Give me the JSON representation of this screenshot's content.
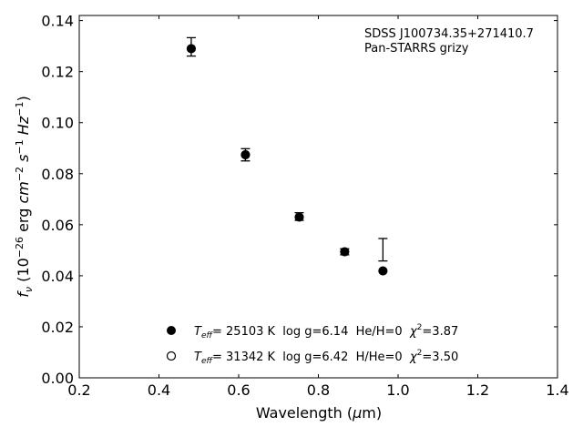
{
  "chart_data": {
    "type": "scatter",
    "xlabel": "Wavelength (μm)",
    "ylabel": "fν (10⁻²⁶ erg cm⁻² s⁻¹ Hz⁻¹)",
    "xlim": [
      0.2,
      1.4
    ],
    "ylim": [
      0.0,
      0.142
    ],
    "xticks": [
      0.2,
      0.4,
      0.6,
      0.8,
      1.0,
      1.2,
      1.4
    ],
    "xtick_labels": [
      "0.2",
      "0.4",
      "0.6",
      "0.8",
      "1.0",
      "1.2",
      "1.4"
    ],
    "yticks": [
      0.0,
      0.02,
      0.04,
      0.06,
      0.08,
      0.1,
      0.12,
      0.14
    ],
    "ytick_labels": [
      "0.00",
      "0.02",
      "0.04",
      "0.06",
      "0.08",
      "0.10",
      "0.12",
      "0.14"
    ],
    "grid": false,
    "annotations": [
      "SDSS J100734.35+271410.7",
      "Pan-STARRS grizy"
    ],
    "observed": {
      "x": [
        0.481,
        0.617,
        0.752,
        0.866,
        0.962
      ],
      "y": [
        0.1297,
        0.0874,
        0.0632,
        0.0494,
        0.0502
      ],
      "yerr": [
        0.0036,
        0.0024,
        0.0015,
        0.0012,
        0.0044
      ]
    },
    "series": [
      {
        "name": "Teff= 25103 K log g=6.14 He/H=0 χ²=3.87",
        "marker": "filled-circle",
        "color": "#000000",
        "x": [
          0.481,
          0.617,
          0.752,
          0.866,
          0.962
        ],
        "y": [
          0.129,
          0.0874,
          0.063,
          0.0494,
          0.0419
        ]
      },
      {
        "name": "Teff= 31342 K log g=6.42 H/He=0 χ²=3.50",
        "marker": "open-circle",
        "color": "#000000",
        "x": [],
        "y": []
      }
    ],
    "legend": [
      {
        "teff_sym": "T",
        "teff_sub": "eff",
        "text": "= 25103 K  log g=6.14  He/H=0  ",
        "chi_sym": "χ",
        "chi_sup": "2",
        "chi_val": "=3.87"
      },
      {
        "teff_sym": "T",
        "teff_sub": "eff",
        "text": "= 31342 K  log g=6.42  H/He=0  ",
        "chi_sym": "χ",
        "chi_sup": "2",
        "chi_val": "=3.50"
      }
    ],
    "legend_position": "lower-center"
  }
}
